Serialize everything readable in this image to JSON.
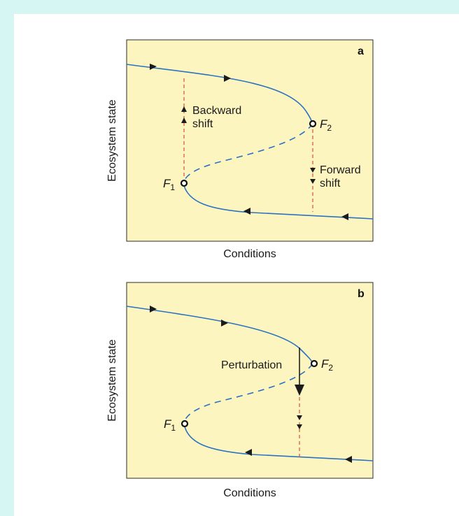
{
  "colors": {
    "frame": "#d5f6f3",
    "panel_fill": "#fdf5c0",
    "curve": "#2a73c1",
    "shift_line": "#d6513c"
  },
  "panel_a": {
    "tag": "a",
    "x_label": "Conditions",
    "y_label": "Ecosystem state",
    "f1": "F",
    "f1_sub": "1",
    "f2": "F",
    "f2_sub": "2",
    "backward_line1": "Backward",
    "backward_line2": "shift",
    "forward_line1": "Forward",
    "forward_line2": "shift"
  },
  "panel_b": {
    "tag": "b",
    "x_label": "Conditions",
    "y_label": "Ecosystem state",
    "f1": "F",
    "f1_sub": "1",
    "f2": "F",
    "f2_sub": "2",
    "perturbation": "Perturbation"
  }
}
